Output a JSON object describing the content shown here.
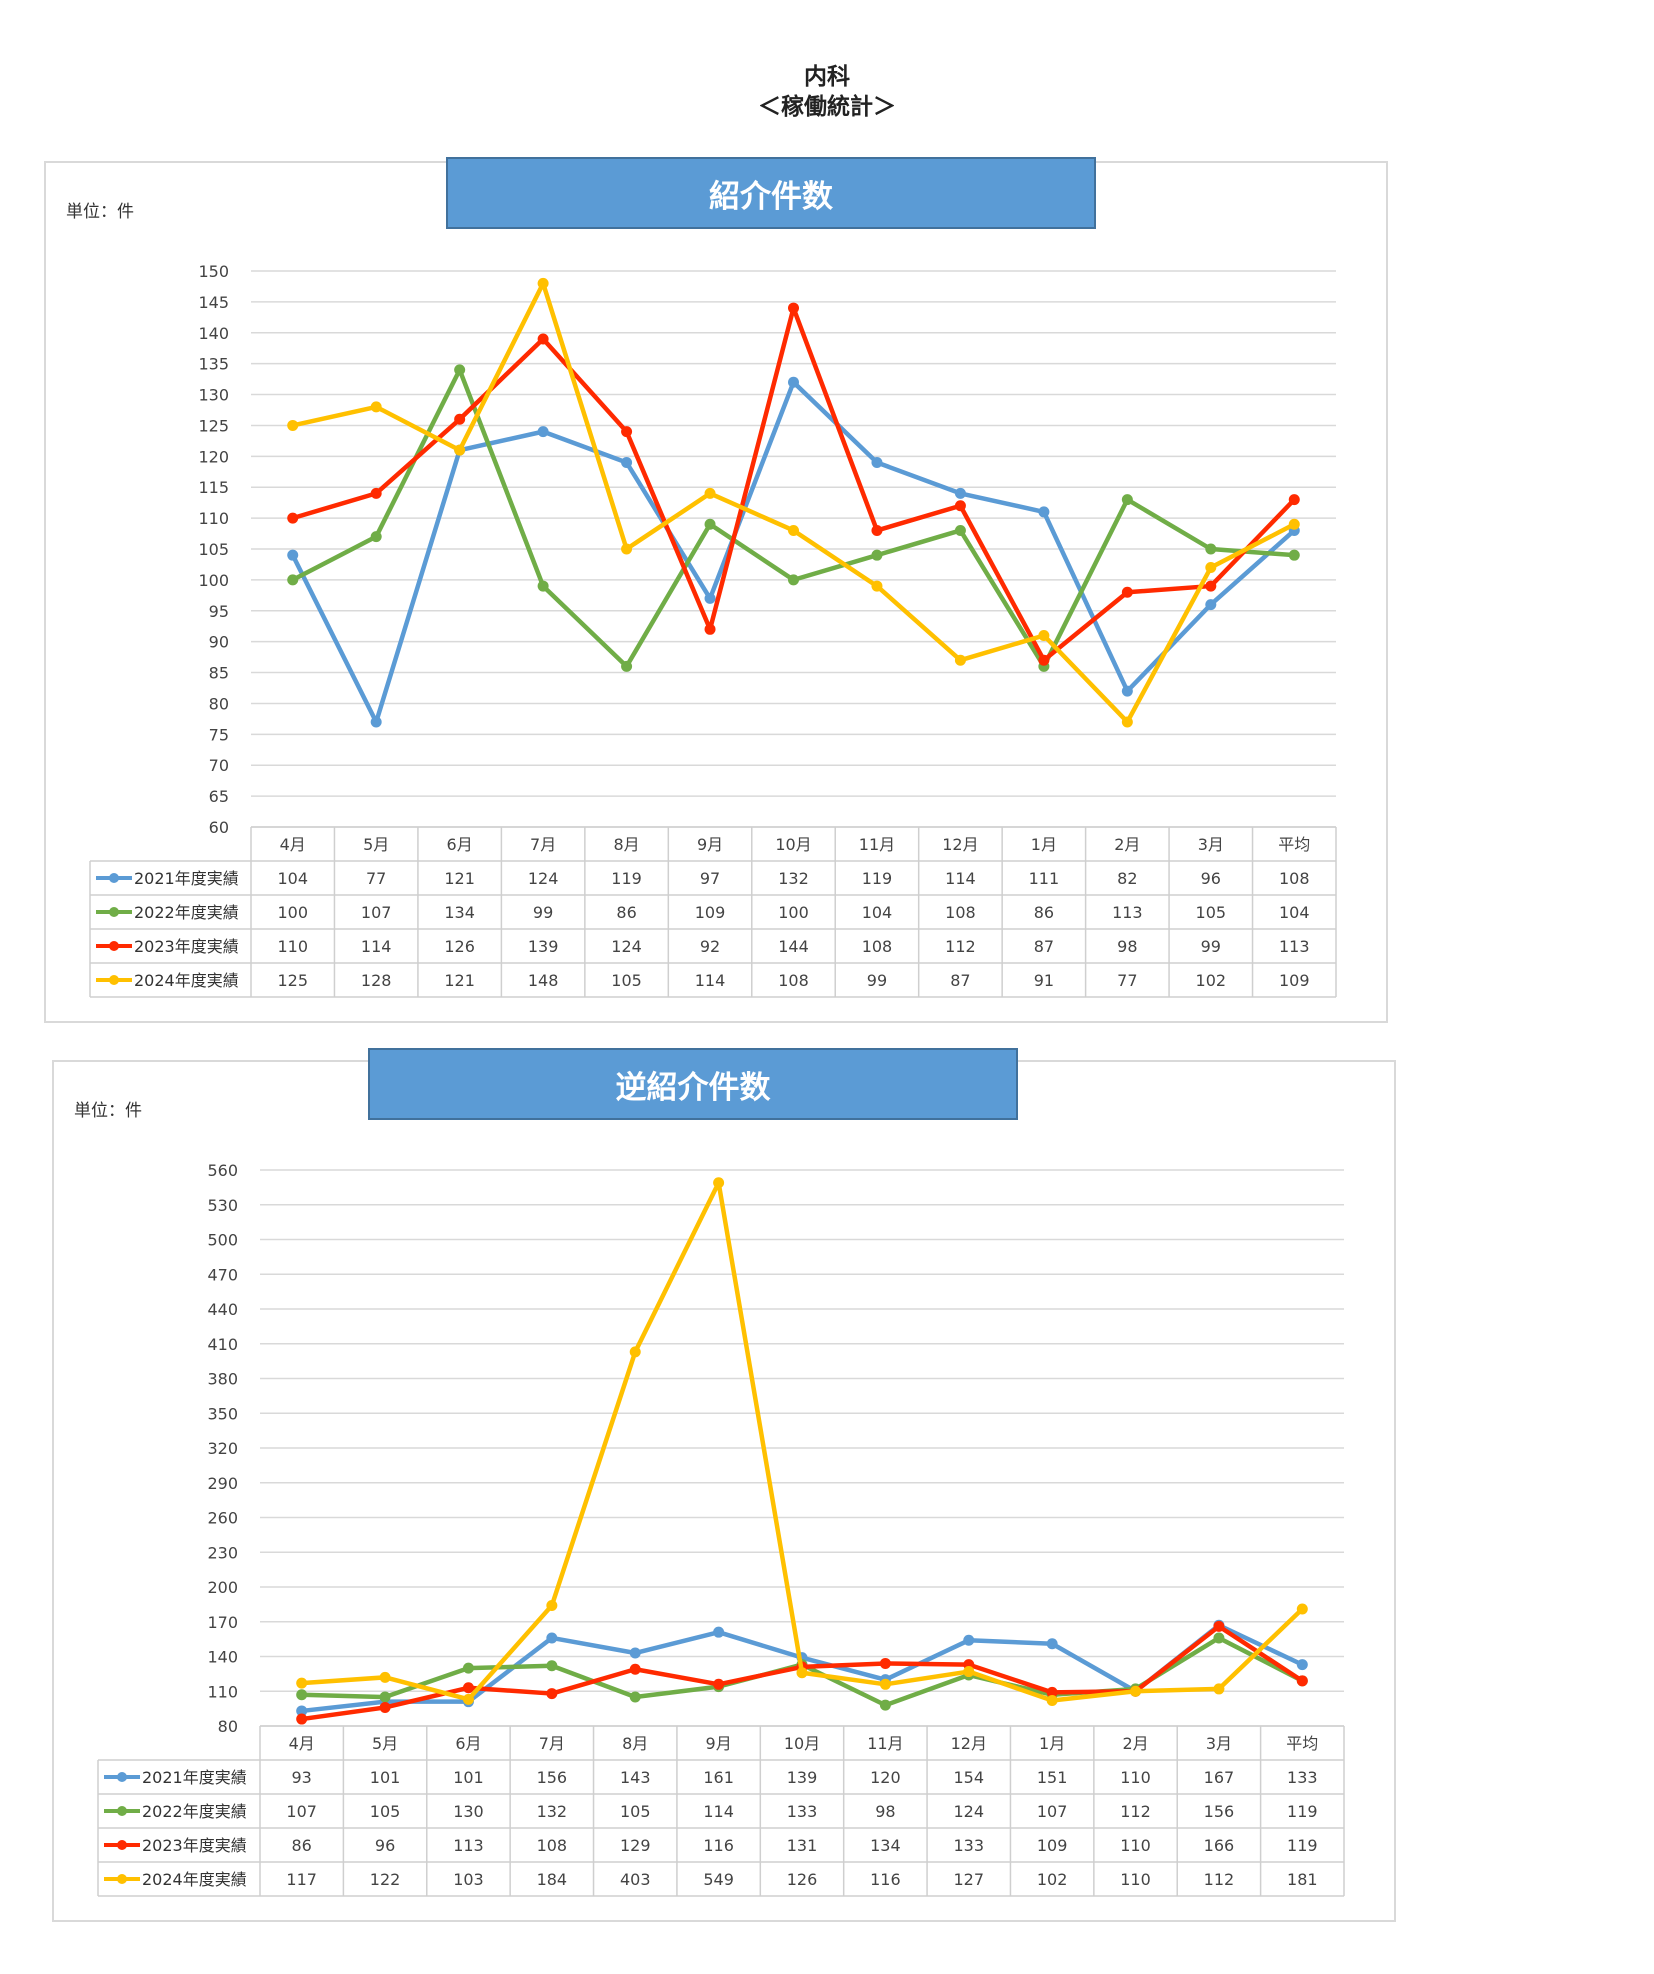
{
  "page": {
    "title_line1": "内科",
    "title_line2": "＜稼働統計＞"
  },
  "colors": {
    "2021": "#5b9bd5",
    "2022": "#70ad47",
    "2023": "#ff2a00",
    "2024": "#ffc000",
    "grid": "#d9d9d9",
    "header_bg": "#5b9bd5"
  },
  "chart_data": [
    {
      "type": "line",
      "title": "紹介件数",
      "unit": "単位：件",
      "categories": [
        "4月",
        "5月",
        "6月",
        "7月",
        "8月",
        "9月",
        "10月",
        "11月",
        "12月",
        "1月",
        "2月",
        "3月",
        "平均"
      ],
      "ylim": [
        60,
        150
      ],
      "yticks": [
        60,
        65,
        70,
        75,
        80,
        85,
        90,
        95,
        100,
        105,
        110,
        115,
        120,
        125,
        130,
        135,
        140,
        145,
        150
      ],
      "grid": true,
      "legend": "data-table",
      "series": [
        {
          "name": "2021年度実績",
          "color": "#5b9bd5",
          "values": [
            104,
            77,
            121,
            124,
            119,
            97,
            132,
            119,
            114,
            111,
            82,
            96,
            108
          ]
        },
        {
          "name": "2022年度実績",
          "color": "#70ad47",
          "values": [
            100,
            107,
            134,
            99,
            86,
            109,
            100,
            104,
            108,
            86,
            113,
            105,
            104
          ]
        },
        {
          "name": "2023年度実績",
          "color": "#ff2a00",
          "values": [
            110,
            114,
            126,
            139,
            124,
            92,
            144,
            108,
            112,
            87,
            98,
            99,
            113
          ]
        },
        {
          "name": "2024年度実績",
          "color": "#ffc000",
          "values": [
            125,
            128,
            121,
            148,
            105,
            114,
            108,
            99,
            87,
            91,
            77,
            102,
            109
          ]
        }
      ]
    },
    {
      "type": "line",
      "title": "逆紹介件数",
      "unit": "単位：件",
      "categories": [
        "4月",
        "5月",
        "6月",
        "7月",
        "8月",
        "9月",
        "10月",
        "11月",
        "12月",
        "1月",
        "2月",
        "3月",
        "平均"
      ],
      "ylim": [
        80,
        560
      ],
      "yticks": [
        80,
        110,
        140,
        170,
        200,
        230,
        260,
        290,
        320,
        350,
        380,
        410,
        440,
        470,
        500,
        530,
        560
      ],
      "grid": true,
      "legend": "data-table",
      "series": [
        {
          "name": "2021年度実績",
          "color": "#5b9bd5",
          "values": [
            93,
            101,
            101,
            156,
            143,
            161,
            139,
            120,
            154,
            151,
            110,
            167,
            133
          ]
        },
        {
          "name": "2022年度実績",
          "color": "#70ad47",
          "values": [
            107,
            105,
            130,
            132,
            105,
            114,
            133,
            98,
            124,
            107,
            112,
            156,
            119
          ]
        },
        {
          "name": "2023年度実績",
          "color": "#ff2a00",
          "values": [
            86,
            96,
            113,
            108,
            129,
            116,
            131,
            134,
            133,
            109,
            110,
            166,
            119
          ]
        },
        {
          "name": "2024年度実績",
          "color": "#ffc000",
          "values": [
            117,
            122,
            103,
            184,
            403,
            549,
            126,
            116,
            127,
            102,
            110,
            112,
            181
          ]
        }
      ]
    }
  ]
}
